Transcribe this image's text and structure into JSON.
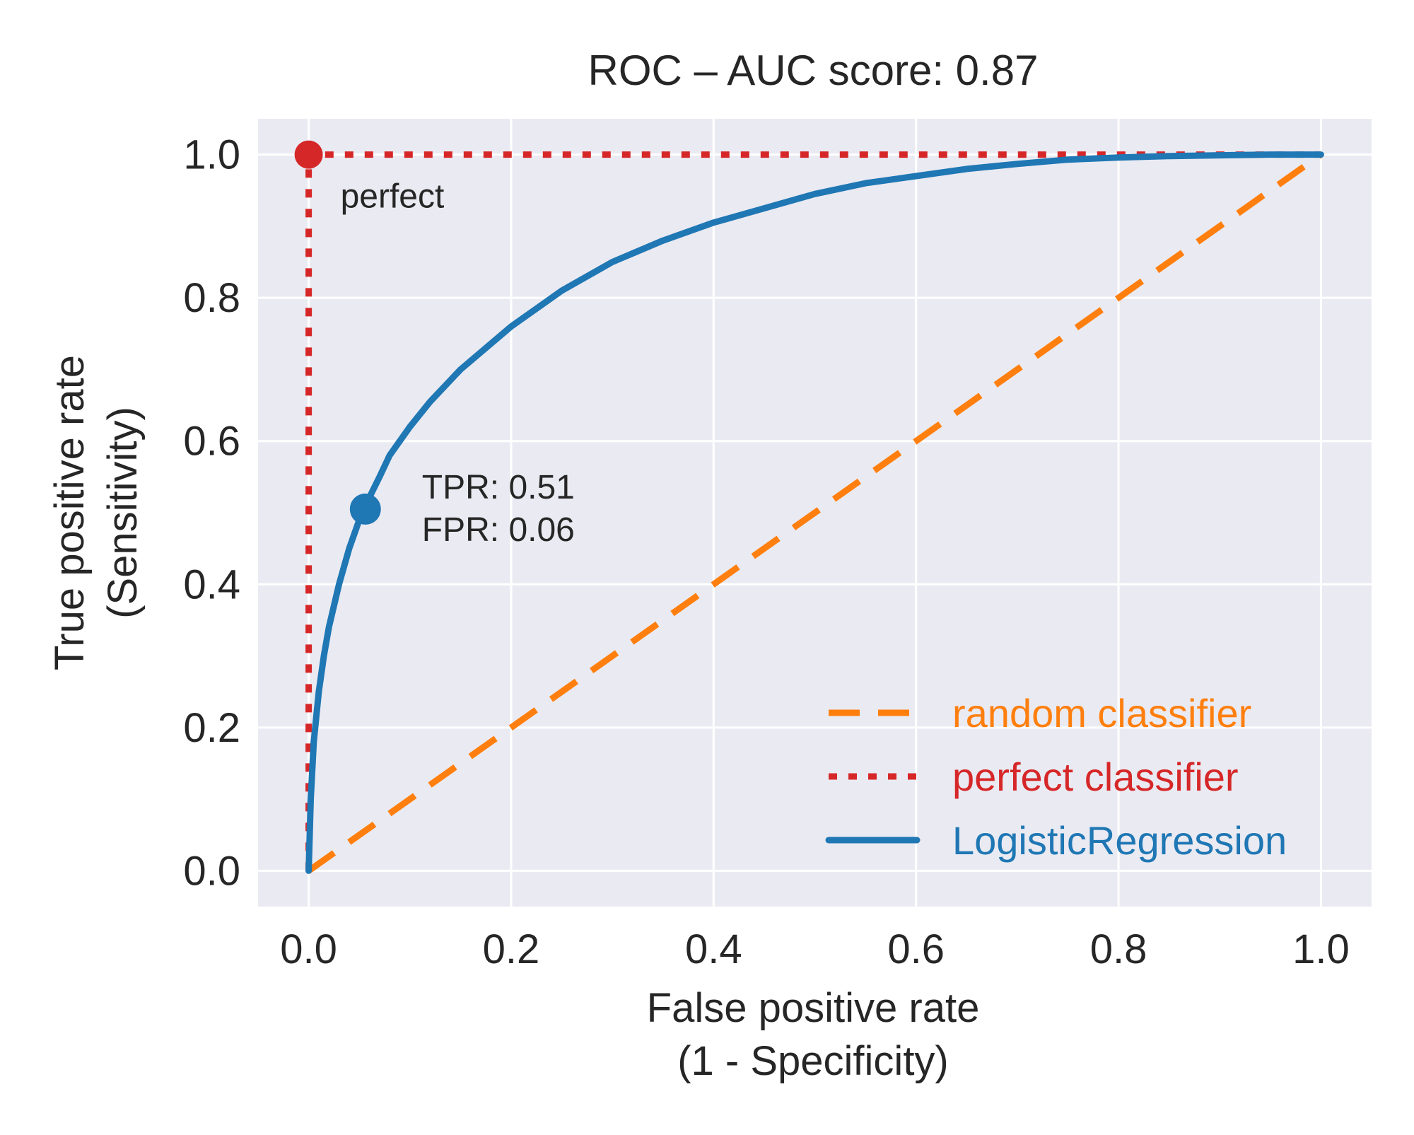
{
  "chart_data": {
    "type": "line",
    "title": "ROC – AUC score: 0.87",
    "xlabel": [
      "False positive rate",
      "(1 - Specificity)"
    ],
    "ylabel": [
      "True positive rate",
      "(Sensitivity)"
    ],
    "xlim": [
      -0.05,
      1.05
    ],
    "ylim": [
      -0.05,
      1.05
    ],
    "xticks": [
      0.0,
      0.2,
      0.4,
      0.6,
      0.8,
      1.0
    ],
    "yticks": [
      0.0,
      0.2,
      0.4,
      0.6,
      0.8,
      1.0
    ],
    "xtick_labels": [
      "0.0",
      "0.2",
      "0.4",
      "0.6",
      "0.8",
      "1.0"
    ],
    "ytick_labels": [
      "0.0",
      "0.2",
      "0.4",
      "0.6",
      "0.8",
      "1.0"
    ],
    "grid": true,
    "legend_position": "bottom-right",
    "colors": {
      "background": "#eaeaf2",
      "grid": "#ffffff",
      "random": "#ff7f0e",
      "perfect": "#d62728",
      "logistic": "#1f77b4"
    },
    "series": [
      {
        "name": "random classifier",
        "style": "dashed",
        "color": "#ff7f0e",
        "x": [
          0.0,
          1.0
        ],
        "y": [
          0.0,
          1.0
        ]
      },
      {
        "name": "perfect classifier",
        "style": "dotted",
        "color": "#d62728",
        "x": [
          0.0,
          0.0,
          1.0
        ],
        "y": [
          0.0,
          1.0,
          1.0
        ]
      },
      {
        "name": "LogisticRegression",
        "style": "solid",
        "color": "#1f77b4",
        "x": [
          0.0,
          0.002,
          0.005,
          0.01,
          0.015,
          0.02,
          0.03,
          0.04,
          0.05,
          0.056,
          0.07,
          0.08,
          0.1,
          0.12,
          0.15,
          0.2,
          0.25,
          0.3,
          0.35,
          0.4,
          0.45,
          0.5,
          0.55,
          0.6,
          0.65,
          0.7,
          0.75,
          0.8,
          0.85,
          0.9,
          0.95,
          1.0
        ],
        "y": [
          0.0,
          0.1,
          0.18,
          0.25,
          0.3,
          0.34,
          0.4,
          0.45,
          0.49,
          0.51,
          0.55,
          0.58,
          0.62,
          0.655,
          0.7,
          0.76,
          0.81,
          0.85,
          0.88,
          0.905,
          0.925,
          0.945,
          0.96,
          0.97,
          0.98,
          0.987,
          0.993,
          0.996,
          0.998,
          0.999,
          1.0,
          1.0
        ]
      }
    ],
    "annotations": [
      {
        "text": "perfect",
        "x": 0.0,
        "y": 1.0,
        "color": "#d62728"
      },
      {
        "text_lines": [
          "TPR: 0.51",
          "FPR: 0.06"
        ],
        "x": 0.056,
        "y": 0.505,
        "color": "#1f77b4"
      }
    ]
  }
}
